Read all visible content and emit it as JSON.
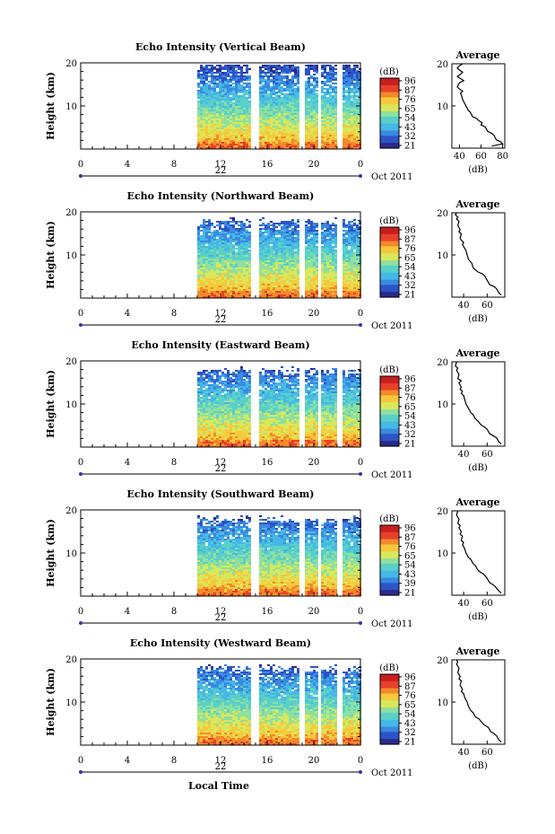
{
  "panels": [
    {
      "title": "Echo Intensity (Vertical Beam)",
      "colorbar_ticks": [
        "96",
        "87",
        "76",
        "65",
        "54",
        "43",
        "32",
        "21"
      ],
      "avg_xticks": [
        "40",
        "60",
        "80"
      ],
      "avg_curve": [
        [
          70,
          0.5
        ],
        [
          80,
          1.0
        ],
        [
          78,
          1.5
        ],
        [
          74,
          2.0
        ],
        [
          72,
          3.0
        ],
        [
          70,
          3.5
        ],
        [
          66,
          4.0
        ],
        [
          64,
          5.0
        ],
        [
          60,
          5.5
        ],
        [
          61,
          6.0
        ],
        [
          58,
          6.5
        ],
        [
          56,
          7.0
        ],
        [
          52,
          7.5
        ],
        [
          50,
          8.5
        ],
        [
          48,
          9.0
        ],
        [
          46,
          10.0
        ],
        [
          44,
          11.0
        ],
        [
          43,
          11.5
        ],
        [
          42,
          12.5
        ],
        [
          41,
          13.0
        ],
        [
          43,
          13.5
        ],
        [
          40,
          14.0
        ],
        [
          38,
          14.5
        ],
        [
          40,
          15.5
        ],
        [
          44,
          16.0
        ],
        [
          41,
          16.5
        ],
        [
          38,
          17.0
        ],
        [
          41,
          17.5
        ],
        [
          43,
          18.0
        ],
        [
          40,
          18.5
        ],
        [
          38,
          19.0
        ],
        [
          40,
          19.5
        ],
        [
          43,
          20.0
        ]
      ]
    },
    {
      "title": "Echo Intensity (Northward Beam)",
      "colorbar_ticks": [
        "96",
        "87",
        "76",
        "65",
        "54",
        "43",
        "32",
        "21"
      ],
      "avg_xticks": [
        "40",
        "60"
      ],
      "avg_curve": [
        [
          72,
          0.5
        ],
        [
          70,
          1.0
        ],
        [
          68,
          2.0
        ],
        [
          66,
          2.5
        ],
        [
          62,
          3.0
        ],
        [
          60,
          4.0
        ],
        [
          58,
          5.0
        ],
        [
          56,
          5.5
        ],
        [
          52,
          6.0
        ],
        [
          50,
          6.5
        ],
        [
          48,
          7.0
        ],
        [
          47,
          8.0
        ],
        [
          44,
          9.0
        ],
        [
          43,
          10.0
        ],
        [
          42,
          11.0
        ],
        [
          40,
          12.0
        ],
        [
          39,
          12.5
        ],
        [
          40,
          13.0
        ],
        [
          38,
          13.5
        ],
        [
          37,
          14.0
        ],
        [
          38,
          15.0
        ],
        [
          36,
          15.5
        ],
        [
          37,
          16.0
        ],
        [
          35,
          17.0
        ],
        [
          36,
          18.0
        ],
        [
          34,
          18.5
        ],
        [
          35,
          19.0
        ],
        [
          33,
          19.5
        ],
        [
          34,
          20.0
        ]
      ]
    },
    {
      "title": "Echo Intensity (Eastward Beam)",
      "colorbar_ticks": [
        "96",
        "87",
        "76",
        "65",
        "54",
        "43",
        "32",
        "21"
      ],
      "avg_xticks": [
        "40",
        "60"
      ],
      "avg_curve": [
        [
          72,
          0.5
        ],
        [
          70,
          1.0
        ],
        [
          68,
          2.0
        ],
        [
          65,
          2.5
        ],
        [
          62,
          3.0
        ],
        [
          60,
          4.0
        ],
        [
          58,
          4.5
        ],
        [
          55,
          5.0
        ],
        [
          52,
          6.0
        ],
        [
          50,
          6.5
        ],
        [
          48,
          7.5
        ],
        [
          46,
          8.0
        ],
        [
          44,
          9.0
        ],
        [
          42,
          10.0
        ],
        [
          41,
          11.0
        ],
        [
          40,
          12.0
        ],
        [
          38,
          12.5
        ],
        [
          39,
          13.0
        ],
        [
          37,
          13.5
        ],
        [
          38,
          14.0
        ],
        [
          36,
          15.0
        ],
        [
          38,
          15.5
        ],
        [
          35,
          16.0
        ],
        [
          36,
          17.0
        ],
        [
          34,
          18.0
        ],
        [
          35,
          18.5
        ],
        [
          33,
          19.0
        ],
        [
          34,
          20.0
        ]
      ]
    },
    {
      "title": "Echo Intensity (Southward Beam)",
      "colorbar_ticks": [
        "96",
        "87",
        "76",
        "65",
        "54",
        "43",
        "39",
        "21"
      ],
      "avg_xticks": [
        "40",
        "60"
      ],
      "avg_curve": [
        [
          72,
          0.5
        ],
        [
          70,
          1.0
        ],
        [
          67,
          2.0
        ],
        [
          65,
          2.5
        ],
        [
          62,
          3.0
        ],
        [
          60,
          4.0
        ],
        [
          57,
          5.0
        ],
        [
          54,
          5.5
        ],
        [
          52,
          6.0
        ],
        [
          50,
          7.0
        ],
        [
          48,
          7.5
        ],
        [
          46,
          8.5
        ],
        [
          44,
          9.0
        ],
        [
          42,
          10.0
        ],
        [
          41,
          11.0
        ],
        [
          39,
          12.0
        ],
        [
          40,
          12.5
        ],
        [
          38,
          13.0
        ],
        [
          39,
          14.0
        ],
        [
          37,
          14.5
        ],
        [
          38,
          15.0
        ],
        [
          36,
          16.0
        ],
        [
          37,
          16.5
        ],
        [
          35,
          17.0
        ],
        [
          36,
          18.0
        ],
        [
          34,
          19.0
        ],
        [
          35,
          20.0
        ]
      ]
    },
    {
      "title": "Echo Intensity (Westward Beam)",
      "colorbar_ticks": [
        "96",
        "87",
        "76",
        "65",
        "54",
        "43",
        "32",
        "21"
      ],
      "avg_xticks": [
        "40",
        "60"
      ],
      "avg_curve": [
        [
          72,
          0.5
        ],
        [
          70,
          1.0
        ],
        [
          68,
          2.0
        ],
        [
          66,
          2.5
        ],
        [
          63,
          3.0
        ],
        [
          61,
          4.0
        ],
        [
          58,
          4.5
        ],
        [
          56,
          5.0
        ],
        [
          53,
          6.0
        ],
        [
          50,
          6.5
        ],
        [
          48,
          7.5
        ],
        [
          46,
          8.0
        ],
        [
          44,
          9.0
        ],
        [
          43,
          10.0
        ],
        [
          41,
          11.0
        ],
        [
          40,
          12.0
        ],
        [
          38,
          12.5
        ],
        [
          39,
          13.0
        ],
        [
          37,
          14.0
        ],
        [
          38,
          15.0
        ],
        [
          36,
          15.5
        ],
        [
          37,
          16.0
        ],
        [
          35,
          17.0
        ],
        [
          36,
          18.0
        ],
        [
          34,
          19.0
        ],
        [
          35,
          19.5
        ],
        [
          34,
          20.0
        ]
      ]
    }
  ],
  "shared": {
    "ylabel": "Height (km)",
    "yticks": [
      "10",
      "20"
    ],
    "xticks": [
      "0",
      "4",
      "8",
      "12",
      "16",
      "20",
      "0"
    ],
    "day_label": "22",
    "month_label": "Oct 2011",
    "colorbar_unit": "(dB)",
    "avg_title": "Average",
    "avg_unit": "(dB)",
    "xlabel": "Local Time"
  },
  "colors": {
    "colormap": [
      "#2a2a8c",
      "#2c54c8",
      "#3a8ae0",
      "#45b8e6",
      "#5ad0c8",
      "#8ee0a0",
      "#d8e85a",
      "#f8c83c",
      "#f28a2a",
      "#e8402a",
      "#c81e1e"
    ]
  },
  "chart_data": [
    {
      "type": "heatmap",
      "title": "Echo Intensity (Vertical Beam)",
      "ylabel": "Height (km)",
      "xlabel": "Local Time",
      "xlim": [
        0,
        24
      ],
      "ylim": [
        0,
        20
      ],
      "data_start_hour": 10,
      "data_gaps_hours": [
        [
          14.6,
          15.2
        ],
        [
          18.6,
          19.0
        ],
        [
          20.2,
          20.6
        ],
        [
          21.8,
          22.3
        ]
      ],
      "colorbar": {
        "label": "(dB)",
        "ticks": [
          96,
          87,
          76,
          65,
          54,
          43,
          32,
          21
        ]
      }
    },
    {
      "type": "heatmap",
      "title": "Echo Intensity (Northward Beam)",
      "ylabel": "Height (km)",
      "xlabel": "Local Time",
      "xlim": [
        0,
        24
      ],
      "ylim": [
        0,
        20
      ],
      "data_start_hour": 10,
      "colorbar": {
        "label": "(dB)",
        "ticks": [
          96,
          87,
          76,
          65,
          54,
          43,
          32,
          21
        ]
      }
    },
    {
      "type": "heatmap",
      "title": "Echo Intensity (Eastward Beam)",
      "ylabel": "Height (km)",
      "xlabel": "Local Time",
      "xlim": [
        0,
        24
      ],
      "ylim": [
        0,
        20
      ],
      "data_start_hour": 10,
      "colorbar": {
        "label": "(dB)",
        "ticks": [
          96,
          87,
          76,
          65,
          54,
          43,
          32,
          21
        ]
      }
    },
    {
      "type": "heatmap",
      "title": "Echo Intensity (Southward Beam)",
      "ylabel": "Height (km)",
      "xlabel": "Local Time",
      "xlim": [
        0,
        24
      ],
      "ylim": [
        0,
        20
      ],
      "data_start_hour": 10,
      "colorbar": {
        "label": "(dB)",
        "ticks": [
          96,
          87,
          76,
          65,
          54,
          43,
          39,
          21
        ]
      }
    },
    {
      "type": "heatmap",
      "title": "Echo Intensity (Westward Beam)",
      "ylabel": "Height (km)",
      "xlabel": "Local Time",
      "xlim": [
        0,
        24
      ],
      "ylim": [
        0,
        20
      ],
      "data_start_hour": 10,
      "colorbar": {
        "label": "(dB)",
        "ticks": [
          96,
          87,
          76,
          65,
          54,
          43,
          32,
          21
        ]
      }
    },
    {
      "type": "line",
      "title": "Average",
      "xlabel": "(dB)",
      "ylim": [
        0,
        20
      ],
      "note": "height profiles of mean echo intensity, one per beam; values stored in panels[].avg_curve as [dB, km]"
    }
  ]
}
